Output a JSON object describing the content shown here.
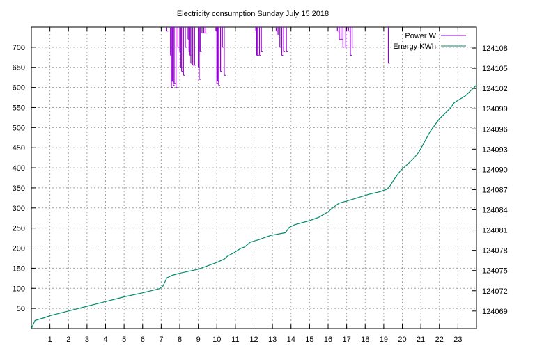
{
  "chart_data": {
    "type": "line",
    "title": "Electricity consumption Sunday July 15 2018",
    "x_range": [
      0,
      24
    ],
    "x_ticks": [
      "1",
      "2",
      "3",
      "4",
      "5",
      "6",
      "7",
      "8",
      "9",
      "10",
      "11",
      "12",
      "13",
      "14",
      "15",
      "16",
      "17",
      "18",
      "19",
      "20",
      "21",
      "22",
      "23"
    ],
    "y_left": {
      "range": [
        0,
        750
      ],
      "ticks": [
        "50",
        "100",
        "150",
        "200",
        "250",
        "300",
        "350",
        "400",
        "450",
        "500",
        "550",
        "600",
        "650",
        "700"
      ]
    },
    "y_right": {
      "range": [
        124066.4,
        124111.1
      ],
      "ticks": [
        "124069",
        "124072",
        "124075",
        "124078",
        "124081",
        "124084",
        "124087",
        "124090",
        "124093",
        "124096",
        "124099",
        "124102",
        "124105",
        "124108"
      ]
    },
    "grid": true,
    "legend_position": "top-right",
    "series": [
      {
        "name": "Power W",
        "axis": "left",
        "color": "#9400d3",
        "style": "impulse-clipped",
        "x": [
          7.3,
          7.5,
          7.55,
          7.6,
          7.65,
          7.7,
          7.8,
          7.9,
          8.0,
          8.05,
          8.1,
          8.2,
          8.3,
          8.45,
          8.5,
          8.55,
          8.6,
          8.7,
          8.8,
          9.0,
          9.05,
          9.1,
          9.2,
          9.3,
          9.4,
          9.95,
          10.0,
          10.05,
          10.1,
          10.2,
          10.3,
          10.4,
          12.1,
          12.15,
          12.2,
          12.3,
          12.4,
          13.2,
          13.3,
          13.4,
          13.5,
          13.6,
          13.75,
          16.5,
          16.6,
          16.7,
          16.8,
          16.95,
          17.1,
          17.2,
          17.3,
          19.25
        ],
        "values": [
          740,
          680,
          600,
          615,
          605,
          610,
          600,
          700,
          690,
          650,
          640,
          630,
          700,
          720,
          690,
          680,
          660,
          655,
          655,
          650,
          620,
          690,
          735,
          735,
          735,
          740,
          610,
          615,
          605,
          640,
          700,
          630,
          740,
          680,
          680,
          680,
          690,
          740,
          730,
          700,
          680,
          690,
          690,
          740,
          720,
          720,
          700,
          700,
          740,
          680,
          700,
          660
        ]
      },
      {
        "name": "Energy KWh",
        "axis": "right",
        "color": "#008b6b",
        "style": "line",
        "x": [
          0,
          0.2,
          0.7,
          1,
          2,
          3,
          4,
          5,
          6,
          6.9,
          7.1,
          7.3,
          7.6,
          8,
          8.5,
          9,
          9.5,
          10,
          10.4,
          10.6,
          10.9,
          11.3,
          11.5,
          11.8,
          12.3,
          12.9,
          13.7,
          13.9,
          14.2,
          15,
          15.5,
          16,
          16.2,
          16.6,
          17,
          17.6,
          18.2,
          18.8,
          19.2,
          19.35,
          19.6,
          19.9,
          20.3,
          20.6,
          20.9,
          21.1,
          21.5,
          22,
          22.6,
          22.8,
          23.4,
          24
        ],
        "values": [
          124066.4,
          124067.6,
          124068,
          124068.3,
          124069,
          124069.7,
          124070.4,
          124071.1,
          124071.7,
          124072.3,
          124072.7,
          124073.9,
          124074.3,
          124074.6,
          124074.9,
          124075.2,
          124075.7,
          124076.2,
          124076.7,
          124077.2,
          124077.6,
          124078.3,
          124078.5,
          124079.2,
          124079.6,
          124080.2,
          124080.6,
          124081.4,
          124081.8,
          124082.4,
          124082.9,
          124083.7,
          124084.2,
          124085,
          124085.3,
          124085.8,
          124086.3,
          124086.7,
          124087.1,
          124087.6,
          124088.7,
          124089.8,
          124090.8,
          124091.6,
          124092.6,
          124093.6,
          124095.6,
          124097.5,
          124099.1,
          124099.9,
          124100.9,
          124102.5
        ]
      }
    ]
  }
}
